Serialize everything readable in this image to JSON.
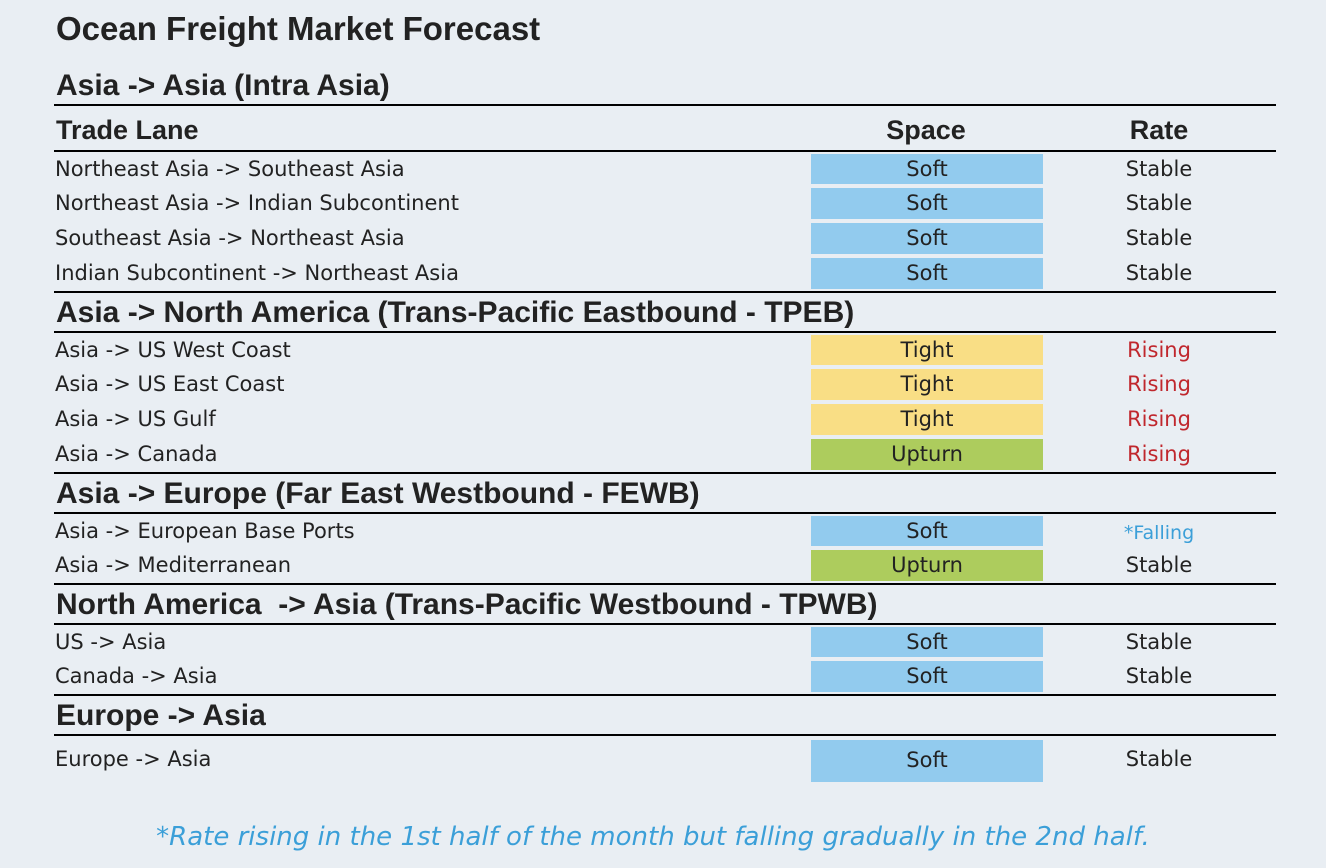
{
  "title": "Ocean Freight Market Forecast",
  "headers": {
    "lane": "Trade Lane",
    "space": "Space",
    "rate": "Rate"
  },
  "colors": {
    "soft": "#92cbee",
    "tight": "#f9de85",
    "upturn": "#adcc5d",
    "rising": "#c0272d",
    "falling": "#3b9fd8"
  },
  "sections": [
    {
      "title": "Asia -> Asia (Intra Asia)",
      "rows": [
        {
          "lane": "Northeast Asia -> Southeast Asia",
          "space": "Soft",
          "rate": "Stable"
        },
        {
          "lane": "Northeast Asia -> Indian Subcontinent",
          "space": "Soft",
          "rate": "Stable"
        },
        {
          "lane": "Southeast Asia -> Northeast Asia",
          "space": "Soft",
          "rate": "Stable"
        },
        {
          "lane": "Indian Subcontinent -> Northeast Asia",
          "space": "Soft",
          "rate": "Stable"
        }
      ]
    },
    {
      "title": "Asia -> North America (Trans-Pacific Eastbound - TPEB)",
      "rows": [
        {
          "lane": "Asia -> US West Coast",
          "space": "Tight",
          "rate": "Rising"
        },
        {
          "lane": "Asia -> US East Coast",
          "space": "Tight",
          "rate": "Rising"
        },
        {
          "lane": "Asia -> US Gulf",
          "space": "Tight",
          "rate": "Rising"
        },
        {
          "lane": "Asia -> Canada",
          "space": "Upturn",
          "rate": "Rising"
        }
      ]
    },
    {
      "title": "Asia -> Europe (Far East Westbound - FEWB)",
      "rows": [
        {
          "lane": "Asia -> European Base Ports",
          "space": "Soft",
          "rate": "*Falling"
        },
        {
          "lane": "Asia -> Mediterranean",
          "space": "Upturn",
          "rate": "Stable"
        }
      ]
    },
    {
      "title": "North America  -> Asia (Trans-Pacific Westbound - TPWB)",
      "rows": [
        {
          "lane": "US -> Asia",
          "space": "Soft",
          "rate": "Stable"
        },
        {
          "lane": "Canada -> Asia",
          "space": "Soft",
          "rate": "Stable"
        }
      ]
    },
    {
      "title": "Europe -> Asia",
      "rows": [
        {
          "lane": "Europe -> Asia",
          "space": "Soft",
          "rate": "Stable"
        }
      ]
    }
  ],
  "footnote": "*Rate rising in the 1st half of the month but falling gradually in the 2nd half."
}
